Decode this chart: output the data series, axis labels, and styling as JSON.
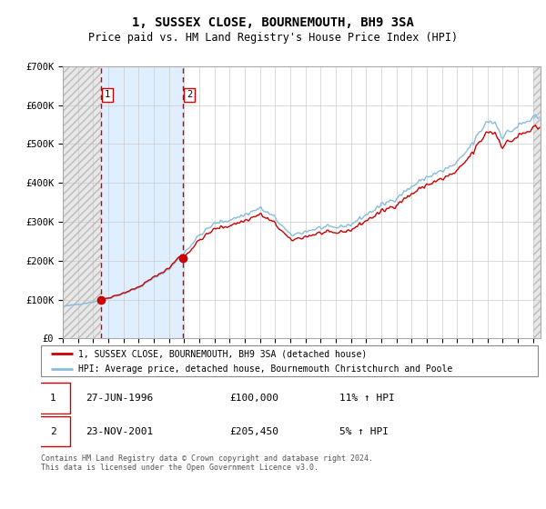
{
  "title": "1, SUSSEX CLOSE, BOURNEMOUTH, BH9 3SA",
  "subtitle": "Price paid vs. HM Land Registry's House Price Index (HPI)",
  "ylabel_ticks": [
    "£0",
    "£100K",
    "£200K",
    "£300K",
    "£400K",
    "£500K",
    "£600K",
    "£700K"
  ],
  "ylim": [
    0,
    700000
  ],
  "xlim_start": 1994.0,
  "xlim_end": 2025.5,
  "sale1_date": 1996.49,
  "sale1_price": 100000,
  "sale1_label": "1",
  "sale1_date_str": "27-JUN-1996",
  "sale1_price_str": "£100,000",
  "sale1_hpi_str": "11% ↑ HPI",
  "sale2_date": 2001.9,
  "sale2_price": 205450,
  "sale2_label": "2",
  "sale2_date_str": "23-NOV-2001",
  "sale2_price_str": "£205,450",
  "sale2_hpi_str": "5% ↑ HPI",
  "hpi_line_color": "#88bbdd",
  "price_line_color": "#cc0000",
  "sale_dot_color": "#cc0000",
  "dashed_line_color": "#cc0000",
  "shaded_region_color": "#ddeeff",
  "legend_label1": "1, SUSSEX CLOSE, BOURNEMOUTH, BH9 3SA (detached house)",
  "legend_label2": "HPI: Average price, detached house, Bournemouth Christchurch and Poole",
  "footer": "Contains HM Land Registry data © Crown copyright and database right 2024.\nThis data is licensed under the Open Government Licence v3.0.",
  "background_color": "#ffffff",
  "grid_color": "#cccccc"
}
